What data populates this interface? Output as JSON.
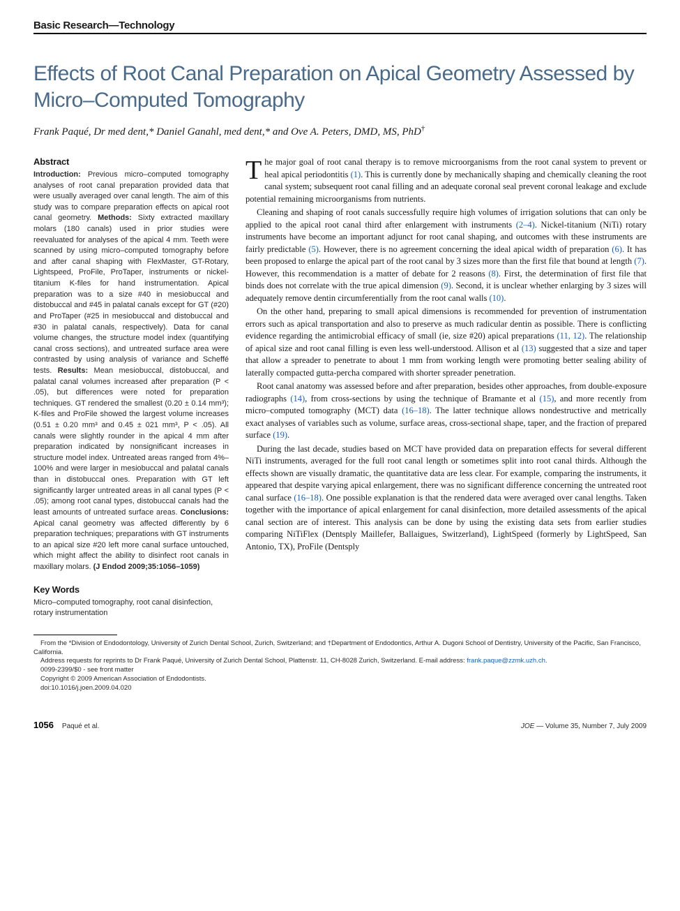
{
  "section_header": "Basic Research—Technology",
  "title": "Effects of Root Canal Preparation on Apical Geometry Assessed by Micro–Computed Tomography",
  "authors_html": "Frank Paqué, Dr med dent,* Daniel Ganahl, med dent,* and Ove A. Peters, DMD, MS, PhD†",
  "abstract": {
    "heading": "Abstract",
    "introduction_label": "Introduction:",
    "introduction": " Previous micro–computed tomography analyses of root canal preparation provided data that were usually averaged over canal length. The aim of this study was to compare preparation effects on apical root canal geometry. ",
    "methods_label": "Methods:",
    "methods": " Sixty extracted maxillary molars (180 canals) used in prior studies were reevaluated for analyses of the apical 4 mm. Teeth were scanned by using micro–computed tomography before and after canal shaping with FlexMaster, GT-Rotary, Lightspeed, ProFile, ProTaper, instruments or nickel-titanium K-files for hand instrumentation. Apical preparation was to a size #40 in mesiobuccal and distobuccal and #45 in palatal canals except for GT (#20) and ProTaper (#25 in mesiobuccal and distobuccal and #30 in palatal canals, respectively). Data for canal volume changes, the structure model index (quantifying canal cross sections), and untreated surface area were contrasted by using analysis of variance and Scheffé tests. ",
    "results_label": "Results:",
    "results": " Mean mesiobuccal, distobuccal, and palatal canal volumes increased after preparation (P < .05), but differences were noted for preparation techniques. GT rendered the smallest (0.20 ± 0.14 mm³); K-files and ProFile showed the largest volume increases (0.51 ± 0.20 mm³ and 0.45 ± 021 mm³, P < .05). All canals were slightly rounder in the apical 4 mm after preparation indicated by nonsignificant increases in structure model index. Untreated areas ranged from 4%–100% and were larger in mesiobuccal and palatal canals than in distobuccal ones. Preparation with GT left significantly larger untreated areas in all canal types (P < .05); among root canal types, distobuccal canals had the least amounts of untreated surface areas. ",
    "conclusions_label": "Conclusions:",
    "conclusions": " Apical canal geometry was affected differently by 6 preparation techniques; preparations with GT instruments to an apical size #20 left more canal surface untouched, which might affect the ability to disinfect root canals in maxillary molars. ",
    "citation": "(J Endod 2009;35:1056–1059)"
  },
  "keywords": {
    "heading": "Key Words",
    "body": "Micro–computed tomography, root canal disinfection, rotary instrumentation"
  },
  "body": {
    "p1_dropcap": "T",
    "p1": "he major goal of root canal therapy is to remove microorganisms from the root canal system to prevent or heal apical periodontitis (1). This is currently done by mechanically shaping and chemically cleaning the root canal system; subsequent root canal filling and an adequate coronal seal prevent coronal leakage and exclude potential remaining microorganisms from nutrients.",
    "p2": "Cleaning and shaping of root canals successfully require high volumes of irrigation solutions that can only be applied to the apical root canal third after enlargement with instruments (2–4). Nickel-titanium (NiTi) rotary instruments have become an important adjunct for root canal shaping, and outcomes with these instruments are fairly predictable (5). However, there is no agreement concerning the ideal apical width of preparation (6). It has been proposed to enlarge the apical part of the root canal by 3 sizes more than the first file that bound at length (7). However, this recommendation is a matter of debate for 2 reasons (8). First, the determination of first file that binds does not correlate with the true apical dimension (9). Second, it is unclear whether enlarging by 3 sizes will adequately remove dentin circumferentially from the root canal walls (10).",
    "p3": "On the other hand, preparing to small apical dimensions is recommended for prevention of instrumentation errors such as apical transportation and also to preserve as much radicular dentin as possible. There is conflicting evidence regarding the antimicrobial efficacy of small (ie, size #20) apical preparations (11, 12). The relationship of apical size and root canal filling is even less well-understood. Allison et al (13) suggested that a size and taper that allow a spreader to penetrate to about 1 mm from working length were promoting better sealing ability of laterally compacted gutta-percha compared with shorter spreader penetration.",
    "p4": "Root canal anatomy was assessed before and after preparation, besides other approaches, from double-exposure radiographs (14), from cross-sections by using the technique of Bramante et al (15), and more recently from micro–computed tomography (MCT) data (16–18). The latter technique allows nondestructive and metrically exact analyses of variables such as volume, surface areas, cross-sectional shape, taper, and the fraction of prepared surface (19).",
    "p5": "During the last decade, studies based on MCT have provided data on preparation effects for several different NiTi instruments, averaged for the full root canal length or sometimes split into root canal thirds. Although the effects shown are visually dramatic, the quantitative data are less clear. For example, comparing the instruments, it appeared that despite varying apical enlargement, there was no significant difference concerning the untreated root canal surface (16–18). One possible explanation is that the rendered data were averaged over canal lengths. Taken together with the importance of apical enlargement for canal disinfection, more detailed assessments of the apical canal section are of interest. This analysis can be done by using the existing data sets from earlier studies comparing NiTiFlex (Dentsply Maillefer, Ballaigues, Switzerland), LightSpeed (formerly by LightSpeed, San Antonio, TX), ProFile (Dentsply",
    "refs": {
      "r1": "(1)",
      "r2_4": "(2–4)",
      "r5": "(5)",
      "r6": "(6)",
      "r7": "(7)",
      "r8": "(8)",
      "r9": "(9)",
      "r10": "(10)",
      "r11_12": "(11, 12)",
      "r13": "(13)",
      "r14": "(14)",
      "r15": "(15)",
      "r16_18a": "(16–18)",
      "r19": "(19)",
      "r16_18b": "(16–18)"
    }
  },
  "footnotes": {
    "affil": "From the *Division of Endodontology, University of Zurich Dental School, Zurich, Switzerland; and †Department of Endodontics, Arthur A. Dugoni School of Dentistry, University of the Pacific, San Francisco, California.",
    "reprint_pre": "Address requests for reprints to Dr Frank Paqué, University of Zurich Dental School, Plattenstr. 11, CH-8028 Zurich, Switzerland. E-mail address: ",
    "email": "frank.paque@zzmk.uzh.ch",
    "reprint_post": ".",
    "code": "0099-2399/$0 - see front matter",
    "copyright": "Copyright © 2009 American Association of Endodontists.",
    "doi": "doi:10.1016/j.joen.2009.04.020"
  },
  "footer": {
    "pagenum": "1056",
    "authors_short": "Paqué et al.",
    "journal": "JOE",
    "issue": " — Volume 35, Number 7, July 2009"
  },
  "style": {
    "title_color": "#4a6a8a",
    "ref_color": "#1560bd",
    "body_fontsize": 12.5,
    "abstract_fontsize": 11,
    "footnote_fontsize": 9.5
  }
}
